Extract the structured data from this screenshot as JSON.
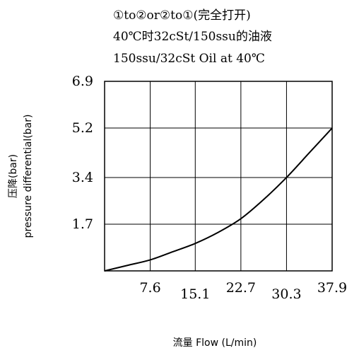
{
  "chart_data": {
    "type": "line",
    "title_lines": [
      "①to②or②to①(完全打开)",
      "40℃时32cSt/150ssu的油液",
      "150ssu/32cSt Oil at 40℃"
    ],
    "xlabel": "流量 Flow (L/min)",
    "ylabel_lines": [
      "压降(bar)",
      "pressure differential(bar)"
    ],
    "x_ticks": [
      "7.6",
      "15.1",
      "22.7",
      "30.3",
      "37.9"
    ],
    "y_ticks": [
      "6.9",
      "5.2",
      "3.4",
      "1.7"
    ],
    "xlim": [
      0,
      37.9
    ],
    "ylim": [
      0,
      6.9
    ],
    "grid": true,
    "series": [
      {
        "x": [
          0,
          3.8,
          7.6,
          11.4,
          15.1,
          18.9,
          22.7,
          26.5,
          30.3,
          34.1,
          37.9
        ],
        "y": [
          0,
          0.2,
          0.4,
          0.7,
          1.0,
          1.4,
          1.9,
          2.6,
          3.4,
          4.3,
          5.2
        ]
      }
    ],
    "line_color": "#000000"
  }
}
